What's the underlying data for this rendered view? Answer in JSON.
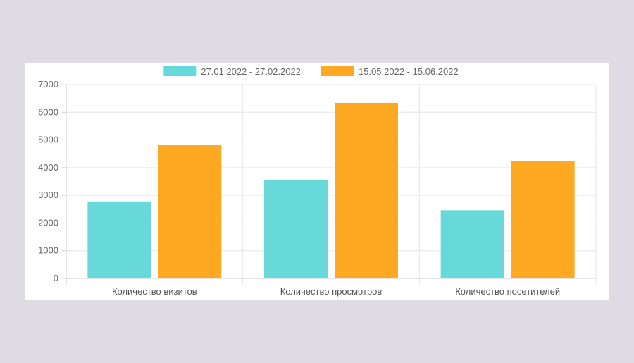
{
  "chart_data": {
    "type": "bar",
    "categories": [
      "Количество визитов",
      "Количество просмотров",
      "Количество посетителей"
    ],
    "series": [
      {
        "name": "27.01.2022 - 27.02.2022",
        "color": "#67d9db",
        "values": [
          2780,
          3540,
          2460
        ]
      },
      {
        "name": "15.05.2022 - 15.06.2022",
        "color": "#ffa923",
        "values": [
          4810,
          6340,
          4250
        ]
      }
    ],
    "yticks": [
      "0",
      "1000",
      "2000",
      "3000",
      "4000",
      "5000",
      "6000",
      "7000"
    ],
    "ylim": [
      0,
      7000
    ],
    "grid": true,
    "legend_position": "top-center",
    "title": "",
    "xlabel": "",
    "ylabel": ""
  }
}
